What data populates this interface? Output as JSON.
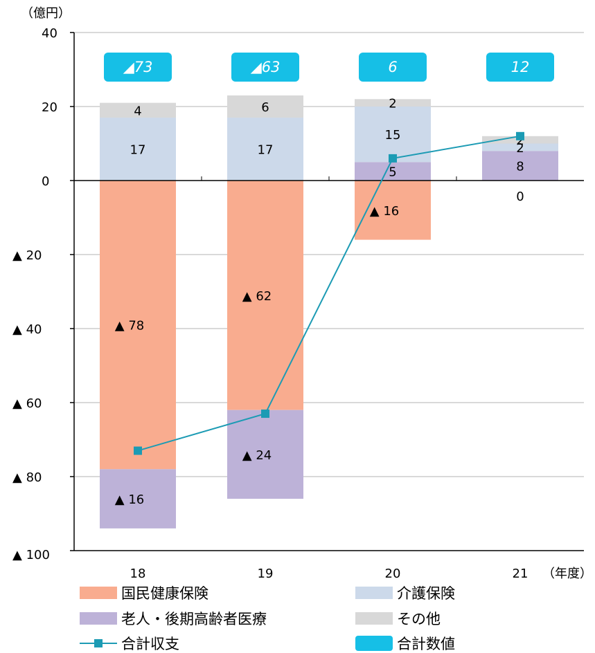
{
  "chart_data": {
    "type": "bar",
    "unit_label": "（億円）",
    "xlabel": "（年度）",
    "categories": [
      "18",
      "19",
      "20",
      "21"
    ],
    "ylim": [
      -100,
      40
    ],
    "y_ticks": [
      {
        "value": 40,
        "label": "40"
      },
      {
        "value": 20,
        "label": "20"
      },
      {
        "value": 0,
        "label": "0"
      },
      {
        "value": -20,
        "label": "▲ 20"
      },
      {
        "value": -40,
        "label": "▲ 40"
      },
      {
        "value": -60,
        "label": "▲ 60"
      },
      {
        "value": -80,
        "label": "▲ 80"
      },
      {
        "value": -100,
        "label": "▲ 100"
      }
    ],
    "grid": true,
    "stacked": true,
    "series": [
      {
        "name": "国民健康保険",
        "color": "#f9ac8f",
        "values": [
          -78,
          -62,
          -16,
          0
        ],
        "labels": [
          "▲ 78",
          "▲ 62",
          "▲ 16",
          ""
        ]
      },
      {
        "name": "老人・後期高齢者医療",
        "color": "#bdb2d8",
        "values": [
          -16,
          -24,
          5,
          8
        ],
        "labels": [
          "▲ 16",
          "▲ 24",
          "5",
          "8"
        ]
      },
      {
        "name": "介護保険",
        "color": "#ccd9ea",
        "values": [
          17,
          17,
          15,
          2
        ],
        "labels": [
          "17",
          "17",
          "15",
          "2"
        ]
      },
      {
        "name": "その他",
        "color": "#d8d8d8",
        "values": [
          4,
          6,
          2,
          2
        ],
        "labels": [
          "4",
          "6",
          "2",
          "2"
        ]
      }
    ],
    "extra_labels": [
      {
        "category": "21",
        "text": "0"
      }
    ],
    "line": {
      "name": "合計収支",
      "color": "#1c9bb4",
      "values": [
        -73,
        -63,
        6,
        12
      ]
    },
    "totals": {
      "name": "合計数値",
      "color": "#16bfe6",
      "labels": [
        "◢73",
        "◢63",
        "6",
        "12"
      ]
    },
    "legend": {
      "position": "bottom",
      "items": [
        {
          "name": "国民健康保険",
          "kind": "bar",
          "color": "#f9ac8f"
        },
        {
          "name": "介護保険",
          "kind": "bar",
          "color": "#ccd9ea"
        },
        {
          "name": "老人・後期高齢者医療",
          "kind": "bar",
          "color": "#bdb2d8"
        },
        {
          "name": "その他",
          "kind": "bar",
          "color": "#d8d8d8"
        },
        {
          "name": "合計収支",
          "kind": "line",
          "color": "#1c9bb4"
        },
        {
          "name": "合計数値",
          "kind": "box",
          "color": "#16bfe6"
        }
      ]
    }
  }
}
